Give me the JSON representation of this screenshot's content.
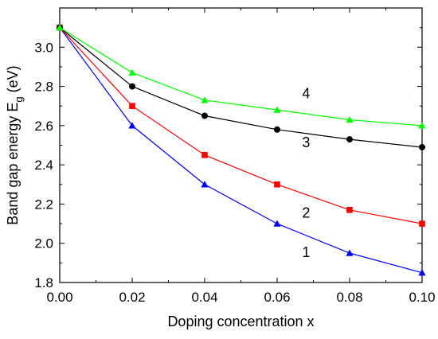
{
  "chart_data": {
    "type": "line",
    "xlabel": "Doping concentration x",
    "ylabel_main": "Band gap energy E",
    "ylabel_sub": "g",
    "ylabel_unit": " (eV)",
    "xlim": [
      0.0,
      0.1
    ],
    "ylim": [
      1.8,
      3.2
    ],
    "x_ticks": [
      "0.00",
      "0.02",
      "0.04",
      "0.06",
      "0.08",
      "0.10"
    ],
    "x_tick_values": [
      0.0,
      0.02,
      0.04,
      0.06,
      0.08,
      0.1
    ],
    "y_ticks": [
      "1.8",
      "2.0",
      "2.2",
      "2.4",
      "2.6",
      "2.8",
      "3.0"
    ],
    "y_tick_values": [
      1.8,
      2.0,
      2.2,
      2.4,
      2.6,
      2.8,
      3.0
    ],
    "grid": false,
    "x": [
      0.0,
      0.02,
      0.04,
      0.06,
      0.08,
      0.1
    ],
    "series": [
      {
        "label": "1",
        "color": "#0000ff",
        "marker": "triangle",
        "values": [
          3.1,
          2.6,
          2.3,
          2.1,
          1.95,
          1.85
        ],
        "label_pos": [
          0.068,
          1.93
        ]
      },
      {
        "label": "2",
        "color": "#ff0000",
        "marker": "square",
        "values": [
          3.1,
          2.7,
          2.45,
          2.3,
          2.17,
          2.1
        ],
        "label_pos": [
          0.068,
          2.13
        ]
      },
      {
        "label": "3",
        "color": "#000000",
        "marker": "circle",
        "values": [
          3.1,
          2.8,
          2.65,
          2.58,
          2.53,
          2.49
        ],
        "label_pos": [
          0.068,
          2.49
        ]
      },
      {
        "label": "4",
        "color": "#00ff00",
        "marker": "triangle",
        "values": [
          3.1,
          2.87,
          2.73,
          2.68,
          2.63,
          2.6
        ],
        "label_pos": [
          0.068,
          2.74
        ]
      }
    ]
  }
}
